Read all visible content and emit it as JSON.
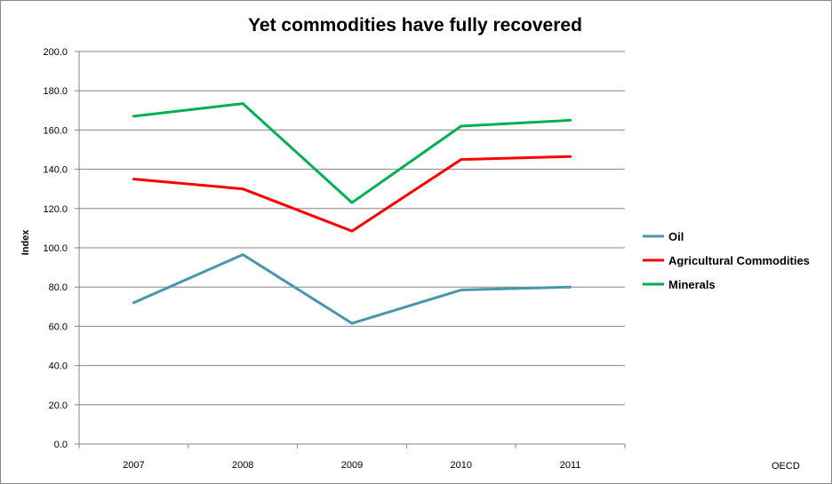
{
  "chart_data": {
    "type": "line",
    "title": "Yet commodities have fully recovered",
    "xlabel": "",
    "ylabel": "Index",
    "categories": [
      "2007",
      "2008",
      "2009",
      "2010",
      "2011"
    ],
    "ylim": [
      0,
      200
    ],
    "yticks": [
      0,
      20,
      40,
      60,
      80,
      100,
      120,
      140,
      160,
      180,
      200
    ],
    "ytick_labels": [
      "0.0",
      "20.0",
      "40.0",
      "60.0",
      "80.0",
      "100.0",
      "120.0",
      "140.0",
      "160.0",
      "180.0",
      "200.0"
    ],
    "grid": true,
    "legend_position": "right",
    "series": [
      {
        "name": "Oil",
        "color": "#4a96ad",
        "values": [
          72.0,
          96.5,
          61.5,
          78.5,
          80.0
        ]
      },
      {
        "name": "Agricultural Commodities",
        "color": "#ff0000",
        "values": [
          135.0,
          130.0,
          108.5,
          145.0,
          146.5
        ]
      },
      {
        "name": "Minerals",
        "color": "#00b050",
        "values": [
          167.0,
          173.5,
          123.0,
          162.0,
          165.0
        ]
      }
    ],
    "source_note": "OECD"
  }
}
